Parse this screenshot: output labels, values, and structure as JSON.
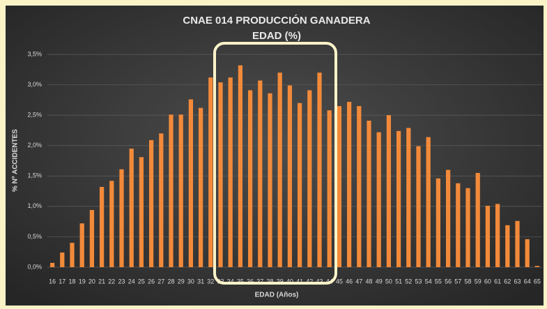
{
  "chart_data": {
    "type": "bar",
    "title": "CNAE 014 PRODUCCIÓN GANADERA",
    "subtitle": "EDAD (%)",
    "x_label": "EDAD (Años)",
    "y_label": "% Nº ACCIDENTES",
    "categories": [
      "16",
      "17",
      "18",
      "19",
      "20",
      "21",
      "22",
      "23",
      "24",
      "25",
      "26",
      "27",
      "28",
      "29",
      "30",
      "31",
      "32",
      "33",
      "34",
      "35",
      "36",
      "37",
      "38",
      "39",
      "40",
      "41",
      "42",
      "43",
      "44",
      "45",
      "46",
      "47",
      "48",
      "49",
      "50",
      "51",
      "52",
      "53",
      "54",
      "55",
      "56",
      "57",
      "58",
      "59",
      "60",
      "61",
      "62",
      "63",
      "64",
      "65"
    ],
    "values": [
      0.07,
      0.24,
      0.4,
      0.72,
      0.94,
      1.32,
      1.42,
      1.61,
      1.95,
      1.81,
      2.09,
      2.2,
      2.51,
      2.51,
      2.76,
      2.62,
      3.12,
      3.04,
      3.12,
      3.32,
      2.91,
      3.07,
      2.86,
      3.2,
      2.99,
      2.7,
      2.91,
      3.2,
      2.58,
      2.65,
      2.72,
      2.65,
      2.41,
      2.22,
      2.5,
      2.24,
      2.29,
      1.99,
      2.14,
      1.46,
      1.6,
      1.38,
      1.3,
      1.55,
      1.01,
      1.04,
      0.69,
      0.76,
      0.46,
      0.02
    ],
    "color": "#f28a3a",
    "ylim": [
      0,
      3.5
    ],
    "yticks": [
      {
        "value": 0,
        "label": "0,0%"
      },
      {
        "value": 0.5,
        "label": "0,5%"
      },
      {
        "value": 1,
        "label": "1,0%"
      },
      {
        "value": 1.5,
        "label": "1,5%"
      },
      {
        "value": 2,
        "label": "2,0%"
      },
      {
        "value": 2.5,
        "label": "2,5%"
      },
      {
        "value": 3,
        "label": "3,0%"
      },
      {
        "value": 3.5,
        "label": "3,5%"
      }
    ],
    "grid": true
  }
}
